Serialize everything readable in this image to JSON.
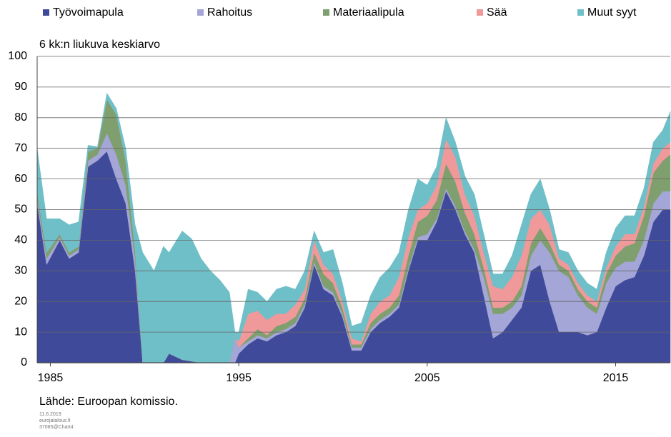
{
  "chart_data": {
    "type": "stacked_area",
    "subtitle": "6 kk:n liukuva keskiarvo",
    "source": "Lähde: Euroopan komissio.",
    "footnotes": [
      "11.6.2019",
      "eurojatalous.fi",
      "37085@Chart4"
    ],
    "x": [
      1984.3,
      1984.8,
      1985.5,
      1986.0,
      1986.5,
      1987.0,
      1987.5,
      1988.0,
      1988.5,
      1989.0,
      1989.5,
      1989.9,
      1990.5,
      1991.0,
      1991.3,
      1992.0,
      1992.5,
      1993.0,
      1993.5,
      1994.0,
      1994.5,
      1994.8,
      1995.0,
      1995.5,
      1996.0,
      1996.5,
      1997.0,
      1997.5,
      1998.0,
      1998.5,
      1999.0,
      1999.5,
      2000.0,
      2000.5,
      2001.0,
      2001.5,
      2002.0,
      2002.5,
      2003.0,
      2003.5,
      2004.0,
      2004.5,
      2005.0,
      2005.5,
      2006.0,
      2006.5,
      2007.0,
      2007.5,
      2008.0,
      2008.5,
      2009.0,
      2009.5,
      2010.0,
      2010.5,
      2011.0,
      2011.5,
      2012.0,
      2012.5,
      2013.0,
      2013.5,
      2014.0,
      2014.5,
      2015.0,
      2015.5,
      2016.0,
      2016.5,
      2017.0,
      2017.5,
      2017.9
    ],
    "series": [
      {
        "name": "Työvoimapula",
        "color": "#3f4a9a",
        "values": [
          52,
          32,
          40,
          34,
          36,
          64,
          66,
          69,
          60,
          52,
          30,
          0,
          0,
          0,
          3,
          1,
          0.5,
          0,
          0,
          0,
          0,
          0,
          3,
          6,
          8,
          7,
          9,
          10,
          12,
          18,
          32,
          24,
          22,
          15,
          4,
          4,
          10,
          13,
          15,
          18,
          30,
          40,
          40,
          46,
          56,
          50,
          42,
          36,
          22,
          8,
          10,
          14,
          18,
          30,
          32,
          20,
          10,
          10,
          10,
          9,
          10,
          18,
          25,
          27,
          28,
          35,
          46,
          50,
          50
        ]
      },
      {
        "name": "Rahoitus",
        "color": "#a3a6d6",
        "values": [
          2,
          2,
          1,
          1,
          1,
          2,
          2,
          6,
          8,
          6,
          4,
          0,
          0,
          0,
          0,
          0,
          0,
          0,
          0,
          0,
          0,
          8,
          2,
          1,
          1,
          1,
          1,
          1,
          1,
          1,
          1,
          1,
          1,
          1,
          1,
          1,
          1,
          1,
          1,
          1,
          1,
          1,
          2,
          1,
          1,
          1,
          1,
          1,
          6,
          8,
          6,
          4,
          4,
          5,
          8,
          16,
          20,
          18,
          12,
          9,
          6,
          8,
          6,
          6,
          5,
          5,
          6,
          6,
          6
        ]
      },
      {
        "name": "Materiaalipula",
        "color": "#7f9f6e",
        "values": [
          2,
          2,
          1,
          1,
          1,
          3,
          2,
          11,
          13,
          8,
          3,
          0,
          0,
          0,
          0,
          0,
          0,
          0,
          0,
          0,
          0,
          0,
          0,
          1,
          2,
          1,
          2,
          2,
          2,
          2,
          3,
          4,
          3,
          2,
          1,
          1,
          2,
          2,
          2,
          3,
          4,
          5,
          6,
          6,
          8,
          8,
          6,
          5,
          3,
          2,
          2,
          2,
          3,
          4,
          4,
          3,
          2,
          2,
          2,
          2,
          2,
          3,
          4,
          5,
          6,
          8,
          10,
          10,
          12
        ]
      },
      {
        "name": "Sää",
        "color": "#f0999b",
        "values": [
          0,
          0,
          0,
          0,
          0,
          0,
          0,
          0,
          0,
          0,
          0,
          0,
          0,
          0,
          0,
          0,
          0,
          0,
          0,
          0,
          0,
          0,
          2,
          8,
          6,
          5,
          4,
          3,
          4,
          3,
          4,
          3,
          3,
          2,
          2,
          1,
          3,
          4,
          4,
          6,
          6,
          4,
          4,
          5,
          8,
          8,
          6,
          6,
          5,
          7,
          6,
          8,
          10,
          8,
          6,
          6,
          2,
          2,
          2,
          2,
          2,
          2,
          3,
          4,
          3,
          3,
          3,
          4,
          4
        ]
      },
      {
        "name": "Muut syyt",
        "color": "#6fbfc8",
        "values": [
          14,
          11,
          5,
          9,
          8,
          2,
          0.5,
          2,
          2,
          4,
          8,
          36,
          30,
          38,
          33,
          42,
          40,
          34,
          30,
          27,
          23,
          2,
          3,
          8,
          6,
          6,
          8,
          9,
          5,
          6,
          3,
          4,
          8,
          6,
          4,
          6,
          6,
          8,
          9,
          8,
          9,
          10,
          6,
          6,
          7,
          5,
          6,
          7,
          6,
          4,
          5,
          7,
          10,
          8,
          10,
          5,
          3,
          4,
          4,
          4,
          4,
          5,
          6,
          6,
          6,
          6,
          7,
          6,
          10
        ]
      }
    ],
    "xlim": [
      1984.3,
      2017.9
    ],
    "xticks": [
      1985,
      1995,
      2005,
      2015
    ],
    "ylim": [
      0,
      100
    ],
    "yticks": [
      0,
      10,
      20,
      30,
      40,
      50,
      60,
      70,
      80,
      90,
      100
    ],
    "grid": true
  }
}
